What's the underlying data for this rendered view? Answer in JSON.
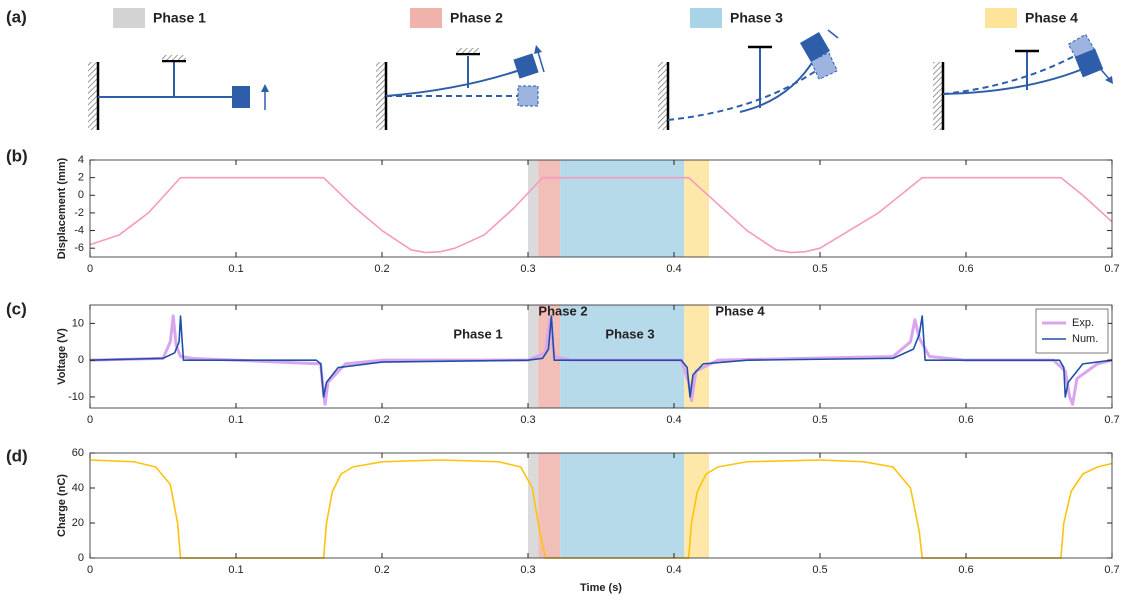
{
  "panels": [
    "(a)",
    "(b)",
    "(c)",
    "(d)"
  ],
  "phases": [
    {
      "name": "Phase 1",
      "color": "#d3d3d3"
    },
    {
      "name": "Phase 2",
      "color": "#f0b3ac"
    },
    {
      "name": "Phase 3",
      "color": "#a9d3e6"
    },
    {
      "name": "Phase 4",
      "color": "#fde49a"
    }
  ],
  "chart_data": [
    {
      "type": "line",
      "ylabel": "Displacement (mm)",
      "xlim": [
        0,
        0.7
      ],
      "xticks": [
        0,
        0.1,
        0.2,
        0.3,
        0.4,
        0.5,
        0.6,
        0.7
      ],
      "ylim": [
        -7,
        4
      ],
      "yticks": [
        -6,
        -4,
        -2,
        0,
        2,
        4
      ],
      "grid": false,
      "bands": [
        {
          "x0": 0.3,
          "x1": 0.307,
          "color": "#d3d3d3"
        },
        {
          "x0": 0.307,
          "x1": 0.322,
          "color": "#f0b3ac"
        },
        {
          "x0": 0.322,
          "x1": 0.407,
          "color": "#a9d3e6"
        },
        {
          "x0": 0.407,
          "x1": 0.424,
          "color": "#fde49a"
        }
      ],
      "series": [
        {
          "color": "#f59ac0",
          "x": [
            0,
            0.02,
            0.04,
            0.062,
            0.16,
            0.18,
            0.2,
            0.22,
            0.23,
            0.24,
            0.25,
            0.27,
            0.29,
            0.31,
            0.41,
            0.43,
            0.45,
            0.47,
            0.48,
            0.49,
            0.5,
            0.52,
            0.54,
            0.57,
            0.665,
            0.68,
            0.7
          ],
          "values": [
            -5.6,
            -4.5,
            -2,
            2,
            2,
            -1.2,
            -4,
            -6.2,
            -6.5,
            -6.4,
            -6,
            -4.5,
            -1.5,
            2,
            2,
            -1,
            -4,
            -6.2,
            -6.5,
            -6.4,
            -6,
            -4,
            -2,
            2,
            2,
            0,
            -3
          ]
        }
      ]
    },
    {
      "type": "line",
      "ylabel": "Voltage (V)",
      "xlim": [
        0,
        0.7
      ],
      "xticks": [
        0,
        0.1,
        0.2,
        0.3,
        0.4,
        0.5,
        0.6,
        0.7
      ],
      "ylim": [
        -13,
        15
      ],
      "yticks": [
        -10,
        0,
        10
      ],
      "grid": false,
      "legend": "upper right",
      "bands": [
        {
          "x0": 0.3,
          "x1": 0.307,
          "color": "#d3d3d3"
        },
        {
          "x0": 0.307,
          "x1": 0.322,
          "color": "#f0b3ac"
        },
        {
          "x0": 0.322,
          "x1": 0.407,
          "color": "#a9d3e6"
        },
        {
          "x0": 0.407,
          "x1": 0.424,
          "color": "#fde49a"
        }
      ],
      "annotations": [
        {
          "text": "Phase 1",
          "color": "#b5b5b5"
        },
        {
          "text": "Phase 2",
          "color": "#f08c80"
        },
        {
          "text": "Phase 3",
          "color": "#1a6e9a"
        },
        {
          "text": "Phase 4",
          "color": "#f6c544"
        }
      ],
      "series": [
        {
          "name": "Exp.",
          "color": "#d9a6ee",
          "x": [
            0,
            0.05,
            0.055,
            0.057,
            0.059,
            0.062,
            0.07,
            0.158,
            0.16,
            0.161,
            0.163,
            0.175,
            0.2,
            0.3,
            0.312,
            0.315,
            0.318,
            0.33,
            0.405,
            0.41,
            0.412,
            0.415,
            0.43,
            0.55,
            0.562,
            0.565,
            0.568,
            0.575,
            0.6,
            0.66,
            0.668,
            0.671,
            0.673,
            0.676,
            0.69,
            0.7
          ],
          "values": [
            0,
            0.5,
            5,
            12,
            4,
            1,
            0.5,
            -1,
            -9,
            -12,
            -6,
            -1,
            0,
            0,
            2,
            11,
            1,
            0,
            0,
            -6,
            -11,
            -3,
            0,
            1,
            5,
            11,
            6,
            1,
            0,
            0,
            -3,
            -10,
            -12,
            -5,
            -1,
            0
          ]
        },
        {
          "name": "Num.",
          "color": "#1f4fa8",
          "x": [
            0,
            0.05,
            0.058,
            0.061,
            0.062,
            0.064,
            0.07,
            0.155,
            0.158,
            0.16,
            0.162,
            0.17,
            0.2,
            0.3,
            0.31,
            0.314,
            0.316,
            0.318,
            0.33,
            0.405,
            0.409,
            0.411,
            0.413,
            0.42,
            0.45,
            0.55,
            0.564,
            0.568,
            0.57,
            0.572,
            0.58,
            0.664,
            0.667,
            0.668,
            0.67,
            0.68,
            0.7
          ],
          "values": [
            0,
            0.5,
            2,
            5,
            12,
            0,
            0,
            0,
            -1,
            -10,
            -6,
            -2,
            -0.5,
            0,
            0.5,
            3,
            12,
            0,
            0,
            0,
            -2,
            -10,
            -4,
            -1,
            0,
            0.5,
            3,
            7,
            12,
            0,
            0,
            0,
            -2,
            -10,
            -6,
            -1,
            0
          ]
        }
      ]
    },
    {
      "type": "line",
      "ylabel": "Charge (nC)",
      "xlabel": "Time (s)",
      "xlim": [
        0,
        0.7
      ],
      "xticks": [
        0,
        0.1,
        0.2,
        0.3,
        0.4,
        0.5,
        0.6,
        0.7
      ],
      "ylim": [
        0,
        60
      ],
      "yticks": [
        0,
        20,
        40,
        60
      ],
      "grid": false,
      "bands": [
        {
          "x0": 0.3,
          "x1": 0.307,
          "color": "#d3d3d3"
        },
        {
          "x0": 0.307,
          "x1": 0.322,
          "color": "#f0b3ac"
        },
        {
          "x0": 0.322,
          "x1": 0.407,
          "color": "#a9d3e6"
        },
        {
          "x0": 0.407,
          "x1": 0.424,
          "color": "#fde49a"
        }
      ],
      "series": [
        {
          "color": "#ffc20e",
          "x": [
            0,
            0.03,
            0.045,
            0.055,
            0.06,
            0.062,
            0.16,
            0.162,
            0.166,
            0.172,
            0.18,
            0.2,
            0.24,
            0.28,
            0.295,
            0.303,
            0.308,
            0.312,
            0.41,
            0.412,
            0.416,
            0.422,
            0.43,
            0.45,
            0.5,
            0.53,
            0.55,
            0.562,
            0.568,
            0.57,
            0.665,
            0.667,
            0.672,
            0.68,
            0.69,
            0.7
          ],
          "values": [
            56,
            55,
            52,
            42,
            20,
            0,
            0,
            20,
            38,
            48,
            52,
            55,
            56,
            55,
            52,
            40,
            15,
            0,
            0,
            20,
            38,
            48,
            52,
            55,
            56,
            55,
            52,
            40,
            15,
            0,
            0,
            20,
            38,
            48,
            52,
            54
          ]
        }
      ]
    }
  ]
}
